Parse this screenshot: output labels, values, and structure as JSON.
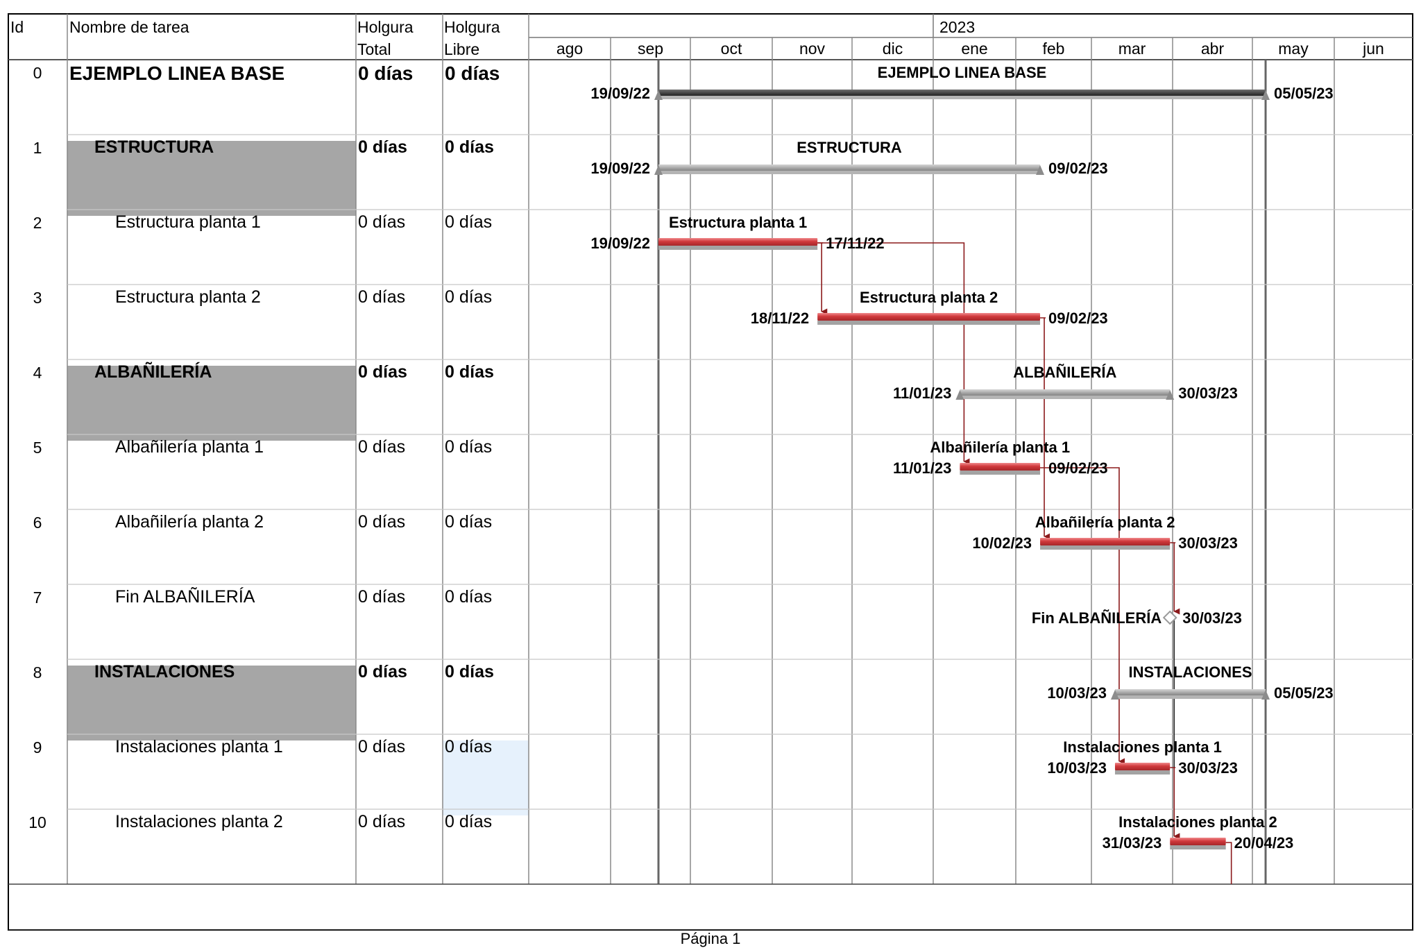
{
  "columns": {
    "id": "Id",
    "name": "Nombre de tarea",
    "total_slack": [
      "Holgura",
      "Total"
    ],
    "free_slack": [
      "Holgura",
      "Libre"
    ]
  },
  "timescale": {
    "year": "2023",
    "months": [
      "ago",
      "sep",
      "oct",
      "nov",
      "dic",
      "ene",
      "feb",
      "mar",
      "abr",
      "may",
      "jun"
    ]
  },
  "tasks": [
    {
      "id": "0",
      "name": "EJEMPLO LINEA BASE",
      "total": "0 días",
      "free": "0 días",
      "level": 0,
      "summary": true,
      "start": "19/09/22",
      "finish": "05/05/23"
    },
    {
      "id": "1",
      "name": "ESTRUCTURA",
      "total": "0 días",
      "free": "0 días",
      "level": 1,
      "summary": true,
      "start": "19/09/22",
      "finish": "09/02/23"
    },
    {
      "id": "2",
      "name": "Estructura planta 1",
      "total": "0 días",
      "free": "0 días",
      "level": 2,
      "summary": false,
      "start": "19/09/22",
      "finish": "17/11/22"
    },
    {
      "id": "3",
      "name": "Estructura planta 2",
      "total": "0 días",
      "free": "0 días",
      "level": 2,
      "summary": false,
      "start": "18/11/22",
      "finish": "09/02/23"
    },
    {
      "id": "4",
      "name": "ALBAÑILERÍA",
      "total": "0 días",
      "free": "0 días",
      "level": 1,
      "summary": true,
      "start": "11/01/23",
      "finish": "30/03/23"
    },
    {
      "id": "5",
      "name": "Albañilería planta 1",
      "total": "0 días",
      "free": "0 días",
      "level": 2,
      "summary": false,
      "start": "11/01/23",
      "finish": "09/02/23"
    },
    {
      "id": "6",
      "name": "Albañilería planta 2",
      "total": "0 días",
      "free": "0 días",
      "level": 2,
      "summary": false,
      "start": "10/02/23",
      "finish": "30/03/23"
    },
    {
      "id": "7",
      "name": "Fin ALBAÑILERÍA",
      "total": "0 días",
      "free": "0 días",
      "level": 2,
      "summary": false,
      "milestone": true,
      "finish": "30/03/23"
    },
    {
      "id": "8",
      "name": "INSTALACIONES",
      "total": "0 días",
      "free": "0 días",
      "level": 1,
      "summary": true,
      "start": "10/03/23",
      "finish": "05/05/23"
    },
    {
      "id": "9",
      "name": "Instalaciones planta 1",
      "total": "0 días",
      "free": "0 días",
      "level": 2,
      "summary": false,
      "start": "10/03/23",
      "finish": "30/03/23",
      "selected_free": true
    },
    {
      "id": "10",
      "name": "Instalaciones planta 2",
      "total": "0 días",
      "free": "0 días",
      "level": 2,
      "summary": false,
      "start": "31/03/23",
      "finish": "20/04/23"
    }
  ],
  "footer": "Página 1",
  "colors": {
    "critical": "#d0393c",
    "critical_dark": "#8b1a1c",
    "baseline": "#8c8c8c",
    "summary_fill": "#a6a6a6",
    "grid": "#c8c8c8",
    "border": "#000000",
    "selected": "#e6f1fc"
  }
}
